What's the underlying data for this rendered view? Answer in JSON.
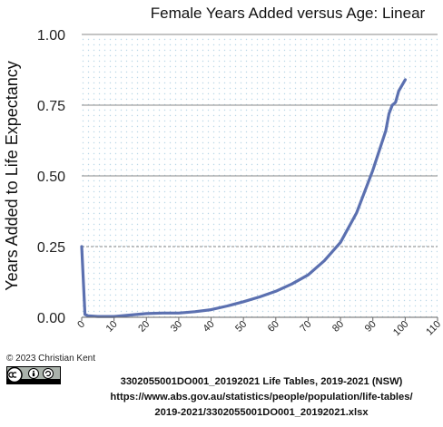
{
  "chart_data": {
    "type": "line",
    "title": "Female Years Added versus Age:  Linear",
    "xlabel": "",
    "ylabel": "Years Added to Life Expectancy",
    "xlim": [
      0,
      110
    ],
    "ylim": [
      0,
      1.0
    ],
    "xticks": [
      0,
      10,
      20,
      30,
      40,
      50,
      60,
      70,
      80,
      90,
      100,
      110
    ],
    "yticks": [
      0.0,
      0.25,
      0.5,
      0.75,
      1.0
    ],
    "ytick_labels": [
      "0.00",
      "0.25",
      "0.50",
      "0.75",
      "1.00"
    ],
    "grid": true,
    "line_color": "#5b70b0",
    "series": [
      {
        "x": [
          0,
          1,
          2,
          5,
          10,
          15,
          20,
          25,
          30,
          35,
          40,
          45,
          50,
          55,
          60,
          65,
          70,
          75,
          80,
          85,
          90,
          94,
          95,
          96,
          97,
          98,
          100
        ],
        "y": [
          0.25,
          0.01,
          0.005,
          0.003,
          0.003,
          0.008,
          0.013,
          0.015,
          0.015,
          0.02,
          0.027,
          0.04,
          0.055,
          0.072,
          0.092,
          0.118,
          0.15,
          0.2,
          0.265,
          0.37,
          0.52,
          0.66,
          0.72,
          0.75,
          0.76,
          0.8,
          0.84
        ]
      }
    ]
  },
  "footer": {
    "copyright": "© 2023 Christian Kent",
    "source_lines": [
      "3302055001DO001_20192021 Life Tables, 2019-2021 (NSW)",
      "https://www.abs.gov.au/statistics/people/population/life-tables/",
      "2019-2021/3302055001DO001_20192021.xlsx"
    ]
  }
}
